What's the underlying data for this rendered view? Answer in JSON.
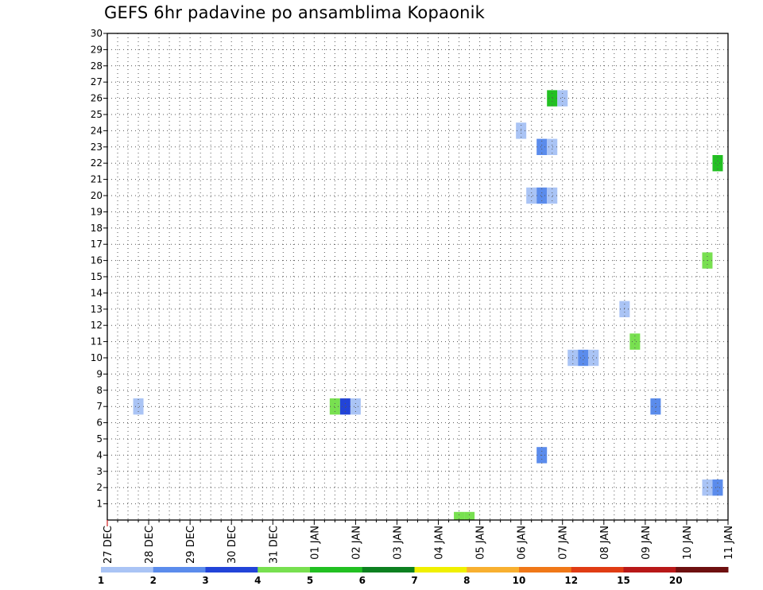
{
  "title": "GEFS 6hr padavine po ansamblima Kopaonik",
  "chart_data": {
    "type": "heatmap",
    "title": "GEFS 6hr padavine po ansamblima Kopaonik",
    "x_start_date": "2019-12-27 00:00",
    "x_end_date": "2020-01-11 00:00",
    "step_hours": 6,
    "x_tick_labels": [
      "27 DEC",
      "28 DEC",
      "29 DEC",
      "30 DEC",
      "31 DEC",
      "01 JAN",
      "02 JAN",
      "03 JAN",
      "04 JAN",
      "05 JAN",
      "06 JAN",
      "07 JAN",
      "08 JAN",
      "09 JAN",
      "10 JAN",
      "11 JAN"
    ],
    "y_tick_labels": [
      "1",
      "2",
      "3",
      "4",
      "5",
      "6",
      "7",
      "8",
      "9",
      "10",
      "11",
      "12",
      "13",
      "14",
      "15",
      "16",
      "17",
      "18",
      "19",
      "20",
      "21",
      "22",
      "23",
      "24",
      "25",
      "26",
      "27",
      "28",
      "29",
      "30"
    ],
    "ylim": [
      0,
      30
    ],
    "grid": true,
    "color_scale": {
      "labels": [
        "1",
        "2",
        "3",
        "4",
        "5",
        "6",
        "7",
        "8",
        "10",
        "12",
        "15",
        "20"
      ],
      "colors": [
        "#aac4f5",
        "#5b8cec",
        "#2244d8",
        "#78e050",
        "#22c022",
        "#0c8020",
        "#f0f000",
        "#f8b030",
        "#f07818",
        "#e03c14",
        "#b81818",
        "#6e1010"
      ]
    },
    "cells": [
      {
        "time": "2019-12-27 18:00",
        "member": 7,
        "color": "#aac4f5"
      },
      {
        "time": "2020-01-01 12:00",
        "member": 7,
        "color": "#78e050"
      },
      {
        "time": "2020-01-01 18:00",
        "member": 7,
        "color": "#2244d8"
      },
      {
        "time": "2020-01-02 00:00",
        "member": 7,
        "color": "#aac4f5"
      },
      {
        "time": "2020-01-04 12:00",
        "member": 0,
        "color": "#78e050"
      },
      {
        "time": "2020-01-04 18:00",
        "member": 0,
        "color": "#78e050"
      },
      {
        "time": "2020-01-06 00:00",
        "member": 24,
        "color": "#aac4f5"
      },
      {
        "time": "2020-01-06 06:00",
        "member": 20,
        "color": "#aac4f5"
      },
      {
        "time": "2020-01-06 12:00",
        "member": 20,
        "color": "#5b8cec"
      },
      {
        "time": "2020-01-06 18:00",
        "member": 20,
        "color": "#aac4f5"
      },
      {
        "time": "2020-01-06 12:00",
        "member": 23,
        "color": "#5b8cec"
      },
      {
        "time": "2020-01-06 18:00",
        "member": 23,
        "color": "#aac4f5"
      },
      {
        "time": "2020-01-06 12:00",
        "member": 4,
        "color": "#5b8cec"
      },
      {
        "time": "2020-01-06 18:00",
        "member": 26,
        "color": "#22c022"
      },
      {
        "time": "2020-01-07 00:00",
        "member": 26,
        "color": "#aac4f5"
      },
      {
        "time": "2020-01-07 06:00",
        "member": 10,
        "color": "#aac4f5"
      },
      {
        "time": "2020-01-07 12:00",
        "member": 10,
        "color": "#5b8cec"
      },
      {
        "time": "2020-01-07 18:00",
        "member": 10,
        "color": "#aac4f5"
      },
      {
        "time": "2020-01-08 12:00",
        "member": 13,
        "color": "#aac4f5"
      },
      {
        "time": "2020-01-08 18:00",
        "member": 11,
        "color": "#78e050"
      },
      {
        "time": "2020-01-09 06:00",
        "member": 7,
        "color": "#5b8cec"
      },
      {
        "time": "2020-01-10 12:00",
        "member": 16,
        "color": "#78e050"
      },
      {
        "time": "2020-01-10 12:00",
        "member": 2,
        "color": "#aac4f5"
      },
      {
        "time": "2020-01-10 18:00",
        "member": 2,
        "color": "#5b8cec"
      },
      {
        "time": "2020-01-10 18:00",
        "member": 22,
        "color": "#22c022"
      }
    ]
  }
}
